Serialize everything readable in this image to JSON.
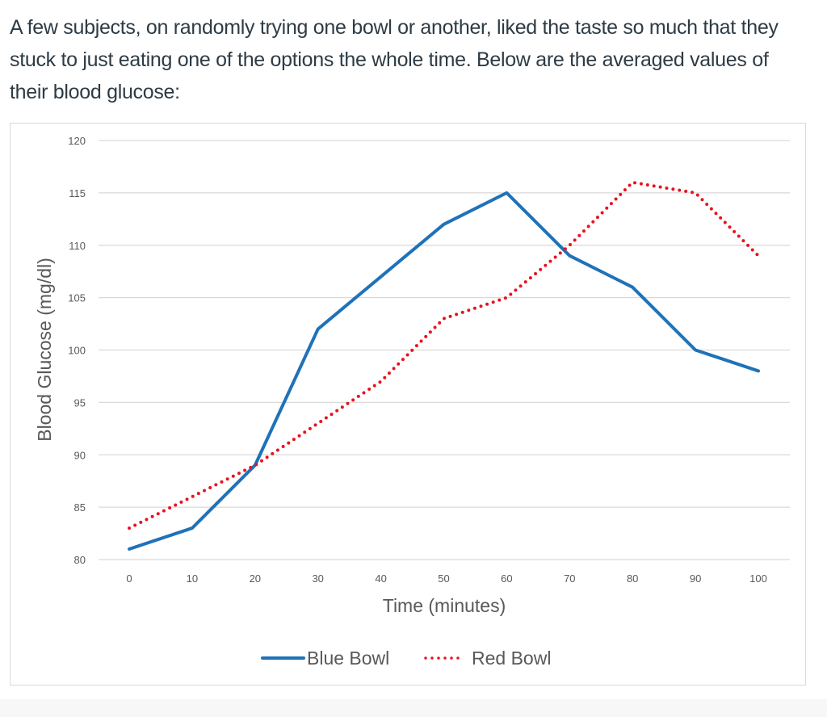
{
  "intro_text": "A few subjects, on randomly trying one bowl or another, liked the taste so much that they stuck to just eating one of the options the whole time.  Below are the averaged values of their blood glucose:",
  "colors": {
    "blue_series": "#1f72b8",
    "red_series": "#e8121e",
    "grid": "#d9d9d9",
    "text": "#595959"
  },
  "chart_data": {
    "type": "line",
    "title": "",
    "xlabel": "Time (minutes)",
    "ylabel": "Blood Glucose (mg/dl)",
    "x": [
      0,
      10,
      20,
      30,
      40,
      50,
      60,
      70,
      80,
      90,
      100
    ],
    "xlim": [
      0,
      100
    ],
    "ylim": [
      80,
      120
    ],
    "x_ticks": [
      "0",
      "10",
      "20",
      "30",
      "40",
      "50",
      "60",
      "70",
      "80",
      "90",
      "100"
    ],
    "y_ticks": [
      "80",
      "85",
      "90",
      "95",
      "100",
      "105",
      "110",
      "115",
      "120"
    ],
    "grid": "horizontal",
    "legend_position": "bottom",
    "series": [
      {
        "name": "Blue Bowl",
        "style": "solid",
        "color": "#1f72b8",
        "values": [
          81,
          83,
          89,
          102,
          107,
          112,
          115,
          109,
          106,
          100,
          98
        ]
      },
      {
        "name": "Red Bowl",
        "style": "dotted",
        "color": "#e8121e",
        "values": [
          83,
          86,
          89,
          93,
          97,
          103,
          105,
          110,
          116,
          115,
          109
        ]
      }
    ]
  }
}
